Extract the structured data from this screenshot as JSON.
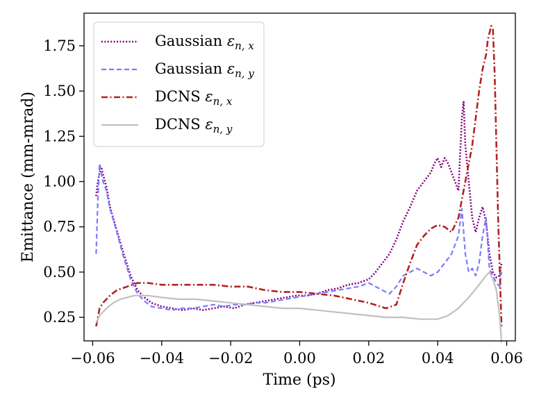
{
  "chart_data": {
    "type": "line",
    "title": "",
    "xlabel": "Time (ps)",
    "ylabel": "Emittance (mm-mrad)",
    "xlim": [
      -0.0625,
      0.0625
    ],
    "ylim": [
      0.12,
      1.93
    ],
    "xticks": [
      -0.06,
      -0.04,
      -0.02,
      0.0,
      0.02,
      0.04,
      0.06
    ],
    "xtick_labels": [
      "−0.06",
      "−0.04",
      "−0.02",
      "0.00",
      "0.02",
      "0.04",
      "0.06"
    ],
    "yticks": [
      0.25,
      0.5,
      0.75,
      1.0,
      1.25,
      1.5,
      1.75
    ],
    "ytick_labels": [
      "0.25",
      "0.50",
      "0.75",
      "1.00",
      "1.25",
      "1.50",
      "1.75"
    ],
    "grid": false,
    "legend": {
      "placement": "upper-left",
      "entries": [
        {
          "prefix": "Gaussian ",
          "symbol": "ε",
          "subscript": "n, x"
        },
        {
          "prefix": "Gaussian ",
          "symbol": "ε",
          "subscript": "n, y"
        },
        {
          "prefix": "DCNS ",
          "symbol": "ε",
          "subscript": "n, x"
        },
        {
          "prefix": "DCNS ",
          "symbol": "ε",
          "subscript": "n, y"
        }
      ]
    },
    "series": [
      {
        "color": "#800080",
        "style": "dotted",
        "x": [
          -0.059,
          -0.0585,
          -0.058,
          -0.0575,
          -0.057,
          -0.056,
          -0.055,
          -0.053,
          -0.051,
          -0.049,
          -0.047,
          -0.045,
          -0.043,
          -0.04,
          -0.037,
          -0.034,
          -0.031,
          -0.028,
          -0.025,
          -0.022,
          -0.019,
          -0.016,
          -0.013,
          -0.01,
          -0.007,
          -0.004,
          -0.001,
          0.002,
          0.005,
          0.008,
          0.011,
          0.014,
          0.017,
          0.02,
          0.022,
          0.024,
          0.026,
          0.028,
          0.03,
          0.032,
          0.034,
          0.036,
          0.038,
          0.039,
          0.04,
          0.041,
          0.042,
          0.043,
          0.044,
          0.045,
          0.046,
          0.047,
          0.0475,
          0.048,
          0.049,
          0.05,
          0.051,
          0.052,
          0.053,
          0.054,
          0.055,
          0.056,
          0.057,
          0.058,
          0.0585
        ],
        "y": [
          0.92,
          1.0,
          1.05,
          1.08,
          1.04,
          0.97,
          0.86,
          0.73,
          0.6,
          0.48,
          0.4,
          0.36,
          0.33,
          0.31,
          0.3,
          0.29,
          0.3,
          0.29,
          0.3,
          0.31,
          0.3,
          0.32,
          0.33,
          0.34,
          0.35,
          0.36,
          0.37,
          0.37,
          0.38,
          0.4,
          0.41,
          0.43,
          0.44,
          0.46,
          0.5,
          0.55,
          0.6,
          0.68,
          0.78,
          0.86,
          0.95,
          1.0,
          1.05,
          1.1,
          1.13,
          1.08,
          1.13,
          1.1,
          1.05,
          1.0,
          0.95,
          1.35,
          1.44,
          1.2,
          1.0,
          0.8,
          0.72,
          0.8,
          0.86,
          0.78,
          0.6,
          0.5,
          0.47,
          0.48,
          0.55
        ]
      },
      {
        "color": "#7b7bff",
        "style": "dashed",
        "x": [
          -0.059,
          -0.0585,
          -0.058,
          -0.0575,
          -0.057,
          -0.056,
          -0.055,
          -0.053,
          -0.051,
          -0.049,
          -0.047,
          -0.045,
          -0.043,
          -0.04,
          -0.037,
          -0.034,
          -0.031,
          -0.028,
          -0.025,
          -0.022,
          -0.019,
          -0.016,
          -0.013,
          -0.01,
          -0.007,
          -0.004,
          -0.001,
          0.002,
          0.005,
          0.008,
          0.011,
          0.014,
          0.017,
          0.02,
          0.022,
          0.024,
          0.026,
          0.028,
          0.03,
          0.032,
          0.034,
          0.036,
          0.038,
          0.04,
          0.042,
          0.044,
          0.046,
          0.047,
          0.048,
          0.049,
          0.05,
          0.051,
          0.052,
          0.053,
          0.054,
          0.055,
          0.056,
          0.057,
          0.058,
          0.0585
        ],
        "y": [
          0.6,
          0.9,
          1.1,
          1.05,
          1.0,
          0.95,
          0.85,
          0.72,
          0.58,
          0.46,
          0.38,
          0.34,
          0.31,
          0.3,
          0.29,
          0.3,
          0.3,
          0.31,
          0.32,
          0.31,
          0.32,
          0.32,
          0.33,
          0.33,
          0.34,
          0.35,
          0.36,
          0.37,
          0.38,
          0.39,
          0.4,
          0.41,
          0.42,
          0.44,
          0.42,
          0.4,
          0.38,
          0.42,
          0.48,
          0.5,
          0.52,
          0.5,
          0.48,
          0.5,
          0.55,
          0.6,
          0.7,
          0.85,
          0.6,
          0.5,
          0.52,
          0.48,
          0.55,
          0.7,
          0.8,
          0.52,
          0.48,
          0.44,
          0.42,
          0.5
        ]
      },
      {
        "color": "#b22222",
        "style": "dashdot",
        "x": [
          -0.059,
          -0.0585,
          -0.058,
          -0.057,
          -0.055,
          -0.053,
          -0.05,
          -0.047,
          -0.044,
          -0.04,
          -0.035,
          -0.03,
          -0.025,
          -0.02,
          -0.015,
          -0.01,
          -0.005,
          0.0,
          0.005,
          0.01,
          0.015,
          0.02,
          0.025,
          0.028,
          0.03,
          0.032,
          0.034,
          0.036,
          0.038,
          0.04,
          0.042,
          0.044,
          0.046,
          0.048,
          0.05,
          0.051,
          0.052,
          0.053,
          0.054,
          0.0545,
          0.055,
          0.0555,
          0.056,
          0.0565,
          0.057,
          0.0575,
          0.058,
          0.0585
        ],
        "y": [
          0.2,
          0.25,
          0.3,
          0.33,
          0.37,
          0.4,
          0.42,
          0.44,
          0.44,
          0.43,
          0.43,
          0.43,
          0.43,
          0.42,
          0.42,
          0.4,
          0.39,
          0.39,
          0.38,
          0.37,
          0.35,
          0.33,
          0.3,
          0.32,
          0.44,
          0.55,
          0.65,
          0.7,
          0.74,
          0.76,
          0.75,
          0.72,
          0.8,
          1.0,
          1.2,
          1.35,
          1.5,
          1.62,
          1.7,
          1.78,
          1.82,
          1.86,
          1.84,
          1.6,
          1.2,
          0.8,
          0.5,
          0.2
        ]
      },
      {
        "color": "#c0c0c0",
        "style": "solid",
        "x": [
          -0.059,
          -0.058,
          -0.056,
          -0.054,
          -0.052,
          -0.05,
          -0.048,
          -0.046,
          -0.044,
          -0.04,
          -0.035,
          -0.03,
          -0.025,
          -0.02,
          -0.015,
          -0.01,
          -0.005,
          0.0,
          0.005,
          0.01,
          0.015,
          0.02,
          0.025,
          0.03,
          0.035,
          0.04,
          0.043,
          0.046,
          0.049,
          0.052,
          0.054,
          0.055,
          0.056,
          0.057,
          0.058,
          0.0585
        ],
        "y": [
          0.22,
          0.26,
          0.3,
          0.33,
          0.35,
          0.36,
          0.37,
          0.37,
          0.37,
          0.36,
          0.35,
          0.35,
          0.34,
          0.33,
          0.32,
          0.31,
          0.3,
          0.3,
          0.29,
          0.28,
          0.27,
          0.26,
          0.25,
          0.25,
          0.24,
          0.24,
          0.26,
          0.3,
          0.36,
          0.43,
          0.48,
          0.5,
          0.46,
          0.4,
          0.25,
          0.11
        ]
      }
    ]
  }
}
